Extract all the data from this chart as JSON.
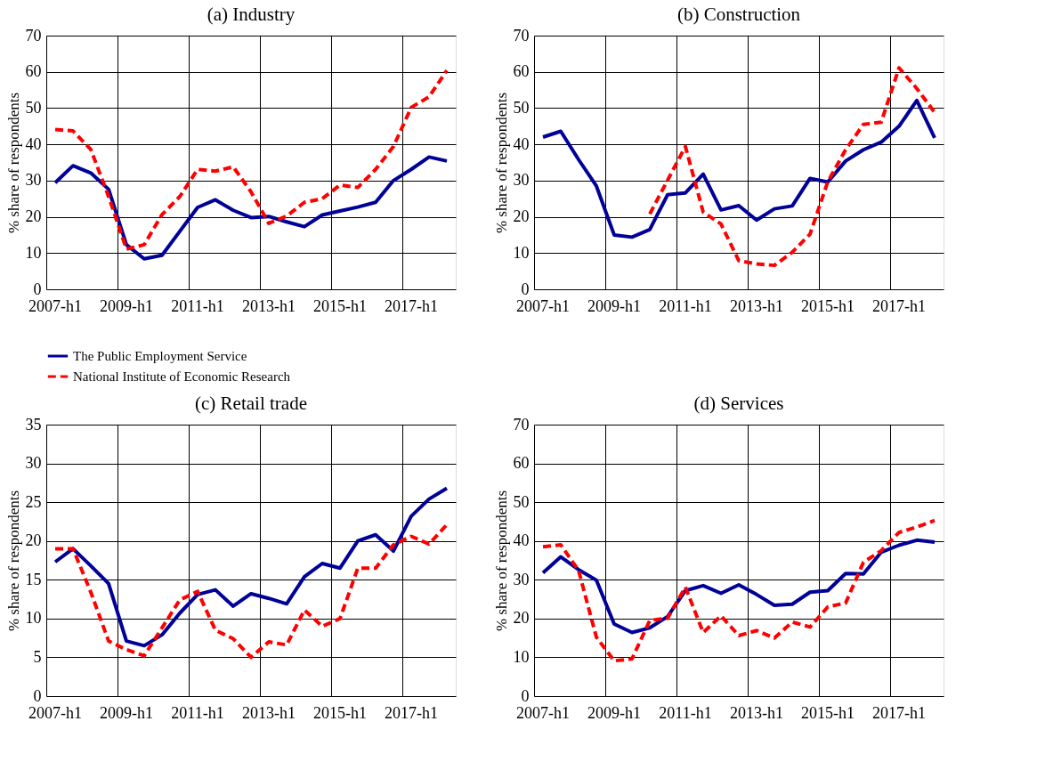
{
  "chart_data": [
    {
      "type": "line",
      "title": "(a) Industry",
      "ylabel": "% share of respondents",
      "categories": [
        "2007-h1",
        null,
        null,
        null,
        "2009-h1",
        null,
        null,
        null,
        "2011-h1",
        null,
        null,
        null,
        "2013-h1",
        null,
        null,
        null,
        "2015-h1",
        null,
        null,
        null,
        "2017-h1",
        null,
        null
      ],
      "series": [
        {
          "name": "The Public Employment Service",
          "color": "#000099",
          "line_style": "solid",
          "values": [
            29.4,
            34.1,
            32.1,
            27.6,
            12.3,
            8.4,
            9.4,
            16,
            22.6,
            24.7,
            21.8,
            19.8,
            20.1,
            18.6,
            17.3,
            20.5,
            21.6,
            22.7,
            24.0,
            30.0,
            33.1,
            36.5,
            35.4
          ]
        },
        {
          "name": "National Institute of Economic Research",
          "color": "#ff0000",
          "line_style": "dashed",
          "values": [
            44.1,
            43.7,
            38.6,
            25.6,
            11.1,
            12.3,
            20.6,
            25.6,
            33.1,
            32.6,
            33.8,
            26.9,
            18.2,
            20.2,
            24.0,
            25.0,
            28.8,
            28.1,
            33.1,
            39.4,
            50.2,
            53.1,
            60.4
          ]
        }
      ],
      "ylim": [
        0,
        70
      ],
      "yticks": [
        0,
        10,
        20,
        30,
        40,
        50,
        60,
        70
      ],
      "grid": true,
      "legend": "bottom"
    },
    {
      "type": "line",
      "title": "(b) Construction",
      "ylabel": "% share of respondents",
      "categories": [
        "2007-h1",
        null,
        null,
        null,
        "2009-h1",
        null,
        null,
        null,
        "2011-h1",
        null,
        null,
        null,
        "2013-h1",
        null,
        null,
        null,
        "2015-h1",
        null,
        null,
        null,
        "2017-h1",
        null,
        null
      ],
      "series": [
        {
          "color": "#000099",
          "line_style": "solid",
          "values": [
            42.0,
            43.6,
            35.8,
            28.5,
            15.0,
            14.4,
            16.5,
            26.1,
            26.6,
            31.8,
            21.9,
            23.1,
            19.1,
            22.2,
            23.0,
            30.6,
            29.6,
            35.4,
            38.5,
            40.6,
            45.0,
            52.1,
            41.8
          ]
        },
        {
          "color": "#ff0000",
          "line_style": "dashed",
          "values": [
            null,
            null,
            null,
            null,
            null,
            null,
            20.8,
            30.1,
            39.4,
            21.3,
            18.0,
            7.9,
            7.0,
            6.6,
            10.2,
            15.2,
            29.7,
            38.5,
            45.5,
            46.1,
            61.1,
            55.4,
            48.8
          ]
        }
      ],
      "ylim": [
        0,
        70
      ],
      "yticks": [
        0,
        10,
        20,
        30,
        40,
        50,
        60,
        70
      ],
      "grid": true
    },
    {
      "type": "line",
      "title": "(c) Retail trade",
      "ylabel": "% share of respondents",
      "categories": [
        "2007-h1",
        null,
        null,
        null,
        "2009-h1",
        null,
        null,
        null,
        "2011-h1",
        null,
        null,
        null,
        "2013-h1",
        null,
        null,
        null,
        "2015-h1",
        null,
        null,
        null,
        "2017-h1",
        null,
        null
      ],
      "series": [
        {
          "color": "#000099",
          "line_style": "solid",
          "values": [
            17.3,
            19.0,
            16.8,
            14.5,
            7.1,
            6.5,
            7.9,
            10.7,
            13.1,
            13.7,
            11.6,
            13.2,
            12.6,
            11.9,
            15.4,
            17.1,
            16.5,
            20.0,
            20.8,
            18.7,
            23.2,
            25.4,
            26.8
          ]
        },
        {
          "color": "#ff0000",
          "line_style": "dashed",
          "values": [
            19.0,
            19.0,
            13.4,
            7.1,
            6.0,
            5.2,
            8.8,
            12.4,
            13.5,
            8.5,
            7.4,
            5.0,
            7.0,
            6.6,
            11.1,
            9.0,
            10.0,
            16.5,
            16.5,
            19.5,
            20.6,
            19.6,
            22.1
          ]
        }
      ],
      "ylim": [
        0,
        35
      ],
      "yticks": [
        0,
        5,
        10,
        15,
        20,
        25,
        30,
        35
      ],
      "grid": true
    },
    {
      "type": "line",
      "title": "(d) Services",
      "ylabel": "% share of respondents",
      "categories": [
        "2007-h1",
        null,
        null,
        null,
        "2009-h1",
        null,
        null,
        null,
        "2011-h1",
        null,
        null,
        null,
        "2013-h1",
        null,
        null,
        null,
        "2015-h1",
        null,
        null,
        null,
        "2017-h1",
        null,
        null
      ],
      "series": [
        {
          "color": "#000099",
          "line_style": "solid",
          "values": [
            31.8,
            35.9,
            32.6,
            29.9,
            18.6,
            16.4,
            17.6,
            20.5,
            27.2,
            28.5,
            26.5,
            28.7,
            26.2,
            23.4,
            23.7,
            26.8,
            27.2,
            31.6,
            31.5,
            37.1,
            38.9,
            40.2,
            39.7
          ]
        },
        {
          "color": "#ff0000",
          "line_style": "dashed",
          "values": [
            38.5,
            39.0,
            32.4,
            15.2,
            9.1,
            9.6,
            19.5,
            20.1,
            28.1,
            16.4,
            20.7,
            15.6,
            16.9,
            15.0,
            19.1,
            17.8,
            23.0,
            24.0,
            34.5,
            37.5,
            42.2,
            43.6,
            45.3
          ]
        }
      ],
      "ylim": [
        0,
        70
      ],
      "yticks": [
        0,
        10,
        20,
        30,
        40,
        50,
        60,
        70
      ],
      "grid": true
    }
  ]
}
